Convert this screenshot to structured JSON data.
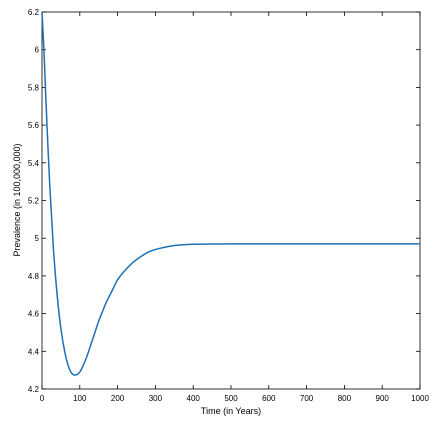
{
  "chart_data": {
    "type": "line",
    "xlabel": "Time (in Years)",
    "ylabel": "Prevalence (in 100,000,000)",
    "xlim": [
      0,
      1000
    ],
    "ylim": [
      4.2,
      6.2
    ],
    "xticks": [
      0,
      100,
      200,
      300,
      400,
      500,
      600,
      700,
      800,
      900,
      1000
    ],
    "yticks": [
      4.2,
      4.4,
      4.6,
      4.8,
      5.0,
      5.2,
      5.4,
      5.6,
      5.8,
      6.0,
      6.2
    ],
    "xtick_labels": [
      "0",
      "100",
      "200",
      "300",
      "400",
      "500",
      "600",
      "700",
      "800",
      "900",
      "1000"
    ],
    "ytick_labels": [
      "4.2",
      "4.4",
      "4.6",
      "4.8",
      "5",
      "5.2",
      "5.4",
      "5.6",
      "5.8",
      "6",
      "6.2"
    ],
    "grid": false,
    "series": [
      {
        "color": "#1f6fb5",
        "x": [
          0,
          5,
          10,
          20,
          30,
          40,
          50,
          60,
          70,
          80,
          90,
          100,
          110,
          120,
          130,
          140,
          150,
          160,
          170,
          180,
          190,
          200,
          220,
          240,
          260,
          280,
          300,
          320,
          340,
          360,
          380,
          400,
          450,
          500,
          600,
          700,
          800,
          900,
          1000
        ],
        "y": [
          6.2,
          6.0,
          5.75,
          5.3,
          4.95,
          4.7,
          4.52,
          4.4,
          4.32,
          4.28,
          4.275,
          4.29,
          4.33,
          4.38,
          4.44,
          4.5,
          4.56,
          4.61,
          4.66,
          4.7,
          4.74,
          4.78,
          4.83,
          4.87,
          4.9,
          4.925,
          4.94,
          4.95,
          4.958,
          4.963,
          4.966,
          4.968,
          4.969,
          4.97,
          4.97,
          4.97,
          4.97,
          4.97,
          4.97
        ]
      }
    ]
  }
}
